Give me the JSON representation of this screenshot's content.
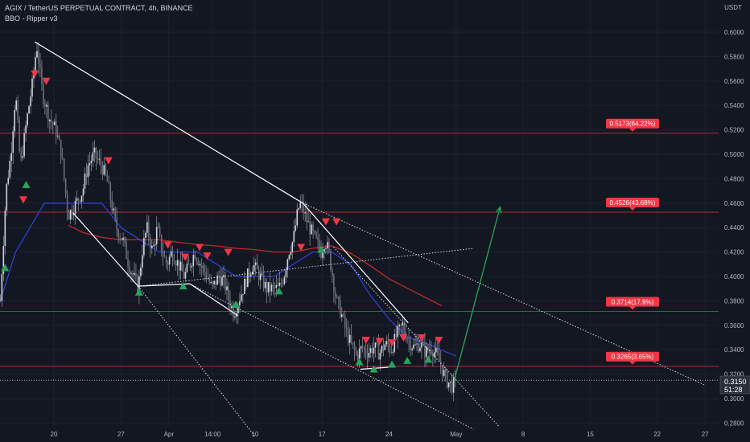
{
  "header": {
    "title": "AGIX / TetherUS PERPETUAL CONTRACT, 4h, BINANCE",
    "indicator": "BBO - Ripper v3"
  },
  "colors": {
    "background": "#131722",
    "grid": "#1c2130",
    "axis_text": "#b2b5be",
    "bull_candle": "#d1d4dc",
    "bear_candle": "#e0e3eb",
    "target_line": "#b22833",
    "target_label_bg": "#f23645",
    "trendline": "#ffffff",
    "arrow": "#26a65b",
    "signal_up": "#26a65b",
    "signal_down": "#f23645",
    "ma_blue": "#2f3fd6",
    "ma_red": "#c62828",
    "price_box": "#2a2e39"
  },
  "chart_data": {
    "type": "candlestick",
    "title": "AGIX / TetherUS PERPETUAL CONTRACT, 4h, BINANCE",
    "subtitle": "BBO - Ripper v3",
    "y_unit": "USDT",
    "ylim": [
      0.272,
      0.614
    ],
    "y_ticks": [
      "0.6000",
      "0.5800",
      "0.5600",
      "0.5400",
      "0.5200",
      "0.5000",
      "0.4800",
      "0.4600",
      "0.4400",
      "0.4200",
      "0.4000",
      "0.3800",
      "0.3600",
      "0.3400",
      "0.3200",
      "0.3000",
      "0.2800"
    ],
    "x_ticks": [
      {
        "label": "20",
        "day": 20
      },
      {
        "label": "27",
        "day": 27
      },
      {
        "label": "Apr",
        "day": 32
      },
      {
        "label": "14:00",
        "day": 36.58
      },
      {
        "label": "10",
        "day": 41
      },
      {
        "label": "17",
        "day": 48
      },
      {
        "label": "24",
        "day": 55
      },
      {
        "label": "May",
        "day": 62
      },
      {
        "label": "8",
        "day": 69
      },
      {
        "label": "15",
        "day": 76
      },
      {
        "label": "22",
        "day": 83
      },
      {
        "label": "27",
        "day": 88
      }
    ],
    "last_price": {
      "value": "0.3150",
      "countdown": "51:28"
    },
    "targets": [
      {
        "price": 0.5173,
        "label": "0.5173(64.22%)"
      },
      {
        "price": 0.4526,
        "label": "0.4526(43.68%)"
      },
      {
        "price": 0.3714,
        "label": "0.3714(17.9%)"
      },
      {
        "price": 0.3265,
        "label": "0.3265(3.65%)"
      }
    ],
    "price_path": [
      [
        14.4,
        0.38
      ],
      [
        15.0,
        0.47
      ],
      [
        15.5,
        0.5
      ],
      [
        16.0,
        0.55
      ],
      [
        16.5,
        0.49
      ],
      [
        17.2,
        0.53
      ],
      [
        17.8,
        0.56
      ],
      [
        18.2,
        0.59
      ],
      [
        18.8,
        0.55
      ],
      [
        19.5,
        0.53
      ],
      [
        20.2,
        0.52
      ],
      [
        20.8,
        0.5
      ],
      [
        21.2,
        0.47
      ],
      [
        21.5,
        0.45
      ],
      [
        22.3,
        0.46
      ],
      [
        23.0,
        0.47
      ],
      [
        23.5,
        0.49
      ],
      [
        24.2,
        0.5
      ],
      [
        25.0,
        0.49
      ],
      [
        25.5,
        0.48
      ],
      [
        26.0,
        0.46
      ],
      [
        26.5,
        0.44
      ],
      [
        27.2,
        0.43
      ],
      [
        27.8,
        0.41
      ],
      [
        28.3,
        0.4
      ],
      [
        28.8,
        0.39
      ],
      [
        29.2,
        0.42
      ],
      [
        29.7,
        0.44
      ],
      [
        30.3,
        0.42
      ],
      [
        30.8,
        0.44
      ],
      [
        31.3,
        0.42
      ],
      [
        31.8,
        0.41
      ],
      [
        32.3,
        0.42
      ],
      [
        33.0,
        0.41
      ],
      [
        33.6,
        0.4
      ],
      [
        34.2,
        0.41
      ],
      [
        34.7,
        0.42
      ],
      [
        35.3,
        0.41
      ],
      [
        36.0,
        0.4
      ],
      [
        36.5,
        0.39
      ],
      [
        37.2,
        0.4
      ],
      [
        37.8,
        0.395
      ],
      [
        38.3,
        0.38
      ],
      [
        38.8,
        0.37
      ],
      [
        39.5,
        0.385
      ],
      [
        40.2,
        0.4
      ],
      [
        40.8,
        0.41
      ],
      [
        41.5,
        0.4
      ],
      [
        42.2,
        0.39
      ],
      [
        42.8,
        0.39
      ],
      [
        43.5,
        0.39
      ],
      [
        44.0,
        0.4
      ],
      [
        44.5,
        0.42
      ],
      [
        45.0,
        0.43
      ],
      [
        45.5,
        0.455
      ],
      [
        45.8,
        0.46
      ],
      [
        46.2,
        0.45
      ],
      [
        46.7,
        0.44
      ],
      [
        47.3,
        0.43
      ],
      [
        47.9,
        0.42
      ],
      [
        48.3,
        0.43
      ],
      [
        48.7,
        0.42
      ],
      [
        49.1,
        0.4
      ],
      [
        49.5,
        0.38
      ],
      [
        50.0,
        0.37
      ],
      [
        50.5,
        0.355
      ],
      [
        51.0,
        0.345
      ],
      [
        51.6,
        0.335
      ],
      [
        52.2,
        0.342
      ],
      [
        52.8,
        0.338
      ],
      [
        53.4,
        0.342
      ],
      [
        54.0,
        0.337
      ],
      [
        54.6,
        0.345
      ],
      [
        55.2,
        0.34
      ],
      [
        55.8,
        0.352
      ],
      [
        56.4,
        0.36
      ],
      [
        57.0,
        0.348
      ],
      [
        57.6,
        0.342
      ],
      [
        58.2,
        0.345
      ],
      [
        58.8,
        0.338
      ],
      [
        59.4,
        0.342
      ],
      [
        60.0,
        0.335
      ],
      [
        60.5,
        0.325
      ],
      [
        61.0,
        0.315
      ],
      [
        61.6,
        0.31
      ],
      [
        62.0,
        0.315
      ]
    ],
    "moving_averages": [
      {
        "color": "#2f3fd6",
        "points": [
          [
            14.4,
            0.38
          ],
          [
            16,
            0.42
          ],
          [
            17.5,
            0.44
          ],
          [
            19,
            0.46
          ],
          [
            21,
            0.46
          ],
          [
            23,
            0.46
          ],
          [
            25,
            0.46
          ],
          [
            27,
            0.44
          ],
          [
            29,
            0.43
          ],
          [
            31,
            0.42
          ],
          [
            33,
            0.42
          ],
          [
            35,
            0.42
          ],
          [
            37,
            0.41
          ],
          [
            39,
            0.4
          ],
          [
            41,
            0.4
          ],
          [
            43,
            0.4
          ],
          [
            45,
            0.41
          ],
          [
            47,
            0.42
          ],
          [
            49,
            0.42
          ],
          [
            51,
            0.41
          ],
          [
            53,
            0.385
          ],
          [
            55,
            0.365
          ],
          [
            57,
            0.35
          ],
          [
            59,
            0.345
          ],
          [
            61,
            0.338
          ],
          [
            62,
            0.335
          ]
        ]
      },
      {
        "color": "#c62828",
        "points": [
          [
            21.5,
            0.442
          ],
          [
            23,
            0.436
          ],
          [
            25,
            0.432
          ],
          [
            27,
            0.43
          ],
          [
            29,
            0.43
          ],
          [
            31,
            0.43
          ],
          [
            33,
            0.428
          ],
          [
            35,
            0.426
          ],
          [
            37,
            0.425
          ],
          [
            39,
            0.423
          ],
          [
            41,
            0.422
          ],
          [
            43,
            0.42
          ],
          [
            45,
            0.42
          ],
          [
            47,
            0.423
          ],
          [
            49,
            0.425
          ],
          [
            51,
            0.419
          ],
          [
            53,
            0.409
          ],
          [
            55,
            0.398
          ],
          [
            57,
            0.39
          ],
          [
            59,
            0.382
          ],
          [
            60.5,
            0.376
          ]
        ]
      }
    ],
    "drawings": {
      "solid_lines": [
        [
          [
            18.0,
            0.592
          ],
          [
            46.0,
            0.46
          ]
        ],
        [
          [
            46.0,
            0.46
          ],
          [
            57.0,
            0.362
          ]
        ],
        [
          [
            22.0,
            0.452
          ],
          [
            28.8,
            0.392
          ]
        ],
        [
          [
            28.8,
            0.392
          ],
          [
            34.2,
            0.394
          ]
        ],
        [
          [
            34.2,
            0.394
          ],
          [
            39.2,
            0.368
          ]
        ],
        [
          [
            52.0,
            0.324
          ],
          [
            55.5,
            0.326
          ]
        ]
      ],
      "dotted_lines": [
        [
          [
            46.0,
            0.46
          ],
          [
            88.0,
            0.311
          ]
        ],
        [
          [
            28.8,
            0.392
          ],
          [
            63.8,
            0.423
          ]
        ],
        [
          [
            34.2,
            0.394
          ],
          [
            63.8,
            0.275
          ]
        ],
        [
          [
            28.8,
            0.392
          ],
          [
            41.0,
            0.269
          ]
        ],
        [
          [
            49.2,
            0.424
          ],
          [
            66.5,
            0.277
          ]
        ]
      ],
      "projection_arrow": [
        [
          61.8,
          0.315
        ],
        [
          66.6,
          0.457
        ]
      ]
    },
    "signals_up": [
      [
        14.9,
        0.407
      ],
      [
        17.1,
        0.475
      ],
      [
        28.9,
        0.387
      ],
      [
        33.5,
        0.392
      ],
      [
        39.0,
        0.377
      ],
      [
        43.5,
        0.388
      ],
      [
        47.9,
        0.422
      ],
      [
        51.9,
        0.33
      ],
      [
        53.4,
        0.324
      ],
      [
        55.3,
        0.328
      ],
      [
        56.9,
        0.331
      ],
      [
        59.1,
        0.332
      ]
    ],
    "signals_down": [
      [
        16.8,
        0.463
      ],
      [
        18.0,
        0.566
      ],
      [
        19.2,
        0.56
      ],
      [
        25.7,
        0.495
      ],
      [
        31.9,
        0.426
      ],
      [
        33.7,
        0.416
      ],
      [
        35.2,
        0.424
      ],
      [
        36.0,
        0.417
      ],
      [
        38.2,
        0.42
      ],
      [
        45.8,
        0.424
      ],
      [
        48.4,
        0.445
      ],
      [
        49.5,
        0.445
      ],
      [
        52.6,
        0.348
      ],
      [
        54.0,
        0.347
      ],
      [
        55.3,
        0.346
      ],
      [
        56.5,
        0.35
      ],
      [
        58.4,
        0.35
      ],
      [
        60.2,
        0.348
      ]
    ]
  }
}
